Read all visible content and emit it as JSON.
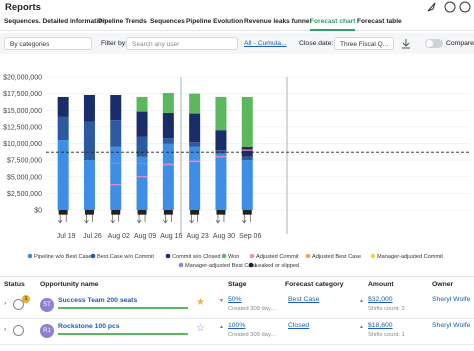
{
  "header": {
    "title": "Reports"
  },
  "tabs": [
    "Sequences. Detailed information",
    "Pipeline Trends",
    "Sequences",
    "Pipeline Evolution",
    "Revenue leaks funnel",
    "Forecast chart",
    "Forecast table"
  ],
  "filters": {
    "group_by": "By categories",
    "filter_label": "Filter by:",
    "search_placeholder": "Search any user",
    "cumulative": "All - Cumula...",
    "close_date_label": "Close date:",
    "close_date": "Three Fiscal Q...",
    "compare": "Compare"
  },
  "chart_data": {
    "type": "bar",
    "stacked": true,
    "categories": [
      "Jul 19",
      "Jul 26",
      "Aug 02",
      "Aug 09",
      "Aug 16",
      "Aug 23",
      "Aug 30",
      "Sep 06"
    ],
    "ylim": [
      0,
      20000000
    ],
    "yticks": [
      {
        "value": 0,
        "label": "$0"
      },
      {
        "value": 2500000,
        "label": "$2,500,000"
      },
      {
        "value": 5000000,
        "label": "$5,000,000"
      },
      {
        "value": 7500000,
        "label": "$7,500,000"
      },
      {
        "value": 10000000,
        "label": "$10,000,000"
      },
      {
        "value": 12500000,
        "label": "$12,500,000"
      },
      {
        "value": 15000000,
        "label": "$15,000,000"
      },
      {
        "value": 17500000,
        "label": "$17,500,000"
      },
      {
        "value": 20000000,
        "label": "$20,000,000"
      }
    ],
    "grid": true,
    "target_line": 8700000,
    "series": [
      {
        "name": "Pipeline w/o Best Case",
        "color": "#3d8ee6",
        "values": [
          10500000,
          7500000,
          9500000,
          8000000,
          10000000,
          9500000,
          8500000,
          7500000
        ]
      },
      {
        "name": "Best Case w/o Commit",
        "color": "#2c5aa0",
        "values": [
          3500000,
          5800000,
          4000000,
          3000000,
          800000,
          700000,
          500000,
          500000
        ]
      },
      {
        "name": "Commit w/o Closed",
        "color": "#1a2d6b",
        "values": [
          3000000,
          4000000,
          3800000,
          3800000,
          3800000,
          4300000,
          3000000,
          1500000
        ]
      },
      {
        "name": "Won",
        "color": "#5cb85c",
        "values": [
          0,
          0,
          0,
          2200000,
          3000000,
          3000000,
          5000000,
          7500000
        ]
      },
      {
        "name": "Adjusted Commit",
        "color": "#f08cbf",
        "kind": "marker",
        "values": [
          null,
          null,
          3800000,
          5000000,
          6800000,
          7300000,
          8000000,
          9000000
        ]
      },
      {
        "name": "Adjusted Best Case",
        "color": "#f0a63e",
        "kind": "marker",
        "values": [
          null,
          null,
          null,
          null,
          null,
          null,
          null,
          null
        ]
      },
      {
        "name": "Manager-adjusted Commit",
        "color": "#f2d24a",
        "kind": "marker",
        "values": [
          null,
          null,
          null,
          null,
          null,
          null,
          null,
          null
        ]
      },
      {
        "name": "Manager-adjusted Best Case",
        "color": "#9b7fd1",
        "kind": "marker",
        "values": [
          null,
          null,
          7000000,
          7000000,
          7000000,
          7500000,
          null,
          null
        ]
      },
      {
        "name": "Leaked or slipped",
        "color": "#222222",
        "kind": "below",
        "values": [
          -400000,
          -400000,
          -400000,
          -400000,
          -400000,
          -400000,
          -400000,
          -400000
        ]
      }
    ]
  },
  "table": {
    "columns": [
      "Status",
      "Opportunity name",
      "Stage",
      "Forecast category",
      "Amount",
      "Owner"
    ],
    "rows": [
      {
        "badge": "1",
        "avatar": "ST",
        "name": "Success Team 200 seats",
        "stage": "50%",
        "created": "Created 309 day...",
        "category": "Best Case",
        "amount": "$32,000",
        "shifts": "Shifts count: 2",
        "owner": "Sheryl Wolfe"
      },
      {
        "avatar": "R1",
        "name": "Rockstone 100 pcs",
        "stage": "100%",
        "created": "Created 309 day...",
        "category": "Closed",
        "amount": "$18,600",
        "shifts": "Shifts count: 1",
        "owner": "Sheryl Wolfe"
      }
    ]
  }
}
